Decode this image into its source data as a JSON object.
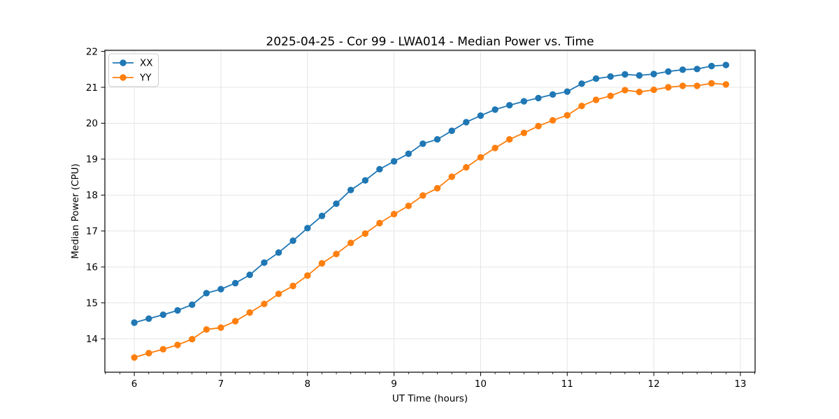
{
  "figure": {
    "background": "#ffffff"
  },
  "chart_data": {
    "type": "line",
    "title": "2025-04-25 - Cor 99 - LWA014 - Median Power vs. Time",
    "xlabel": "UT Time (hours)",
    "ylabel": "Median Power (CPU)",
    "x": [
      6.0,
      6.167,
      6.333,
      6.5,
      6.667,
      6.833,
      7.0,
      7.167,
      7.333,
      7.5,
      7.667,
      7.833,
      8.0,
      8.167,
      8.333,
      8.5,
      8.667,
      8.833,
      9.0,
      9.167,
      9.333,
      9.5,
      9.667,
      9.833,
      10.0,
      10.167,
      10.333,
      10.5,
      10.667,
      10.833,
      11.0,
      11.167,
      11.333,
      11.5,
      11.667,
      11.833,
      12.0,
      12.167,
      12.333,
      12.5,
      12.667,
      12.833
    ],
    "series": [
      {
        "name": "XX",
        "color": "#1f77b4",
        "marker": "circle",
        "values": [
          14.45,
          14.56,
          14.67,
          14.79,
          14.95,
          15.27,
          15.38,
          15.55,
          15.78,
          16.12,
          16.4,
          16.73,
          17.08,
          17.42,
          17.76,
          18.14,
          18.41,
          18.72,
          18.94,
          19.15,
          19.43,
          19.55,
          19.79,
          20.03,
          20.21,
          20.38,
          20.5,
          20.61,
          20.7,
          20.8,
          20.88,
          21.1,
          21.24,
          21.3,
          21.36,
          21.33,
          21.37,
          21.44,
          21.49,
          21.51,
          21.59,
          21.62
        ]
      },
      {
        "name": "YY",
        "color": "#ff7f0e",
        "marker": "circle",
        "values": [
          13.48,
          13.6,
          13.71,
          13.83,
          13.99,
          14.26,
          14.31,
          14.49,
          14.73,
          14.97,
          15.25,
          15.47,
          15.76,
          16.1,
          16.36,
          16.67,
          16.93,
          17.22,
          17.47,
          17.7,
          17.99,
          18.19,
          18.51,
          18.77,
          19.05,
          19.31,
          19.55,
          19.73,
          19.92,
          20.08,
          20.22,
          20.48,
          20.65,
          20.76,
          20.92,
          20.87,
          20.93,
          21.0,
          21.04,
          21.04,
          21.11,
          21.08
        ]
      }
    ],
    "xlim": [
      5.66,
      13.17
    ],
    "ylim": [
      13.07,
      22.03
    ],
    "x_ticks": [
      6,
      7,
      8,
      9,
      10,
      11,
      12,
      13
    ],
    "y_ticks": [
      14,
      15,
      16,
      17,
      18,
      19,
      20,
      21,
      22
    ],
    "x_minor_tick_step": 0.16667,
    "grid": true,
    "grid_color": "#e5e5e5",
    "axis_color": "#000000",
    "legend_position": "upper-left"
  }
}
